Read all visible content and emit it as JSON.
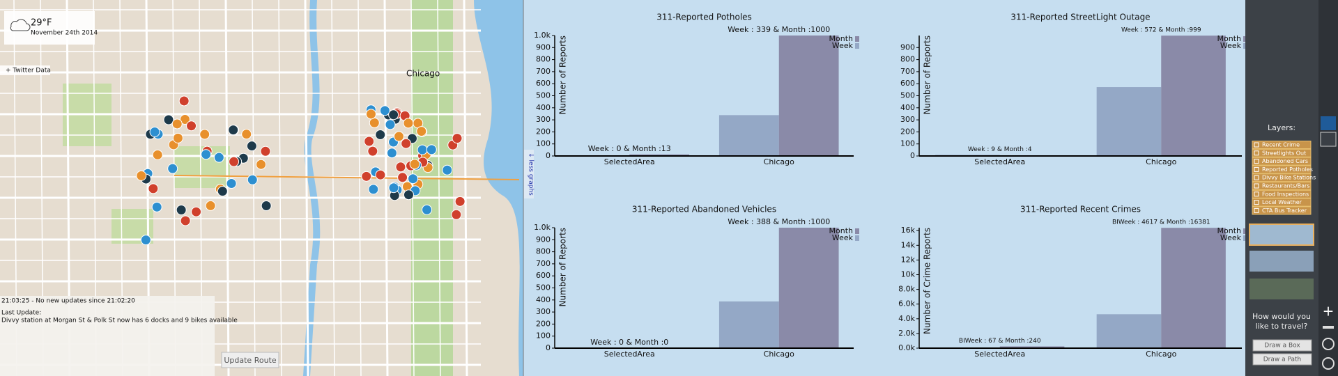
{
  "map": {
    "weather_temp": "29°F",
    "weather_date": "November 24th 2014",
    "twitter": "+ Twitter Data",
    "city_label": "Chicago",
    "status": [
      "21:03:25 - No new updates since 21:02:20",
      "Last Update:",
      "Divvy station at Morgan St & Polk St now has 6 docks and 9 bikes available"
    ],
    "update_route": "Update Route",
    "less_graphs": "↓ less graphs"
  },
  "sidebar": {
    "layers_title": "Layers:",
    "layers": [
      "Recent Crime",
      "Streetlights Out",
      "Abandoned Cars",
      "Reported Potholes",
      "Divvy Bike Stations",
      "Restaurants/Bars",
      "Food Inspections",
      "Local Weather",
      "CTA Bus Tracker"
    ],
    "travel_prompt": [
      "How would you",
      "like to travel?"
    ],
    "buttons": [
      "Draw a Box",
      "Draw a Path"
    ]
  },
  "chart_data": [
    {
      "type": "bar",
      "title": "311-Reported Potholes",
      "ylabel": "Number of Reports",
      "categories": [
        "SelectedArea",
        "Chicago"
      ],
      "series": [
        {
          "name": "Week",
          "color": "#94a8c6",
          "values": [
            0,
            339
          ]
        },
        {
          "name": "Month",
          "color": "#8a8aa8",
          "values": [
            13,
            1000
          ]
        }
      ],
      "annotations": [
        "Week : 0 & Month :13",
        "Week : 339 & Month :1000"
      ],
      "ylim": [
        0,
        1000
      ],
      "yticks": [
        0,
        100,
        200,
        300,
        400,
        500,
        600,
        700,
        800,
        900,
        {
          "value": 1000,
          "label": "1.0k"
        }
      ]
    },
    {
      "type": "bar",
      "title": "311-Reported StreetLight Outage",
      "ylabel": "Number of Reports",
      "categories": [
        "SelectedArea",
        "Chicago"
      ],
      "series": [
        {
          "name": "Week",
          "color": "#94a8c6",
          "values": [
            9,
            572
          ]
        },
        {
          "name": "Month",
          "color": "#8a8aa8",
          "values": [
            4,
            999
          ]
        }
      ],
      "annotations": [
        "Week : 9 & Month :4",
        "Week : 572 & Month :999"
      ],
      "ylim": [
        0,
        1000
      ],
      "yticks": [
        0,
        100,
        200,
        300,
        400,
        500,
        600,
        700,
        800,
        900
      ]
    },
    {
      "type": "bar",
      "title": "311-Reported Abandoned Vehicles",
      "ylabel": "Number of Reports",
      "categories": [
        "SelectedArea",
        "Chicago"
      ],
      "series": [
        {
          "name": "Week",
          "color": "#94a8c6",
          "values": [
            0,
            388
          ]
        },
        {
          "name": "Month",
          "color": "#8a8aa8",
          "values": [
            0,
            1000
          ]
        }
      ],
      "annotations": [
        "Week : 0 & Month :0",
        "Week : 388 & Month :1000"
      ],
      "ylim": [
        0,
        1000
      ],
      "yticks": [
        0,
        100,
        200,
        300,
        400,
        500,
        600,
        700,
        800,
        900,
        {
          "value": 1000,
          "label": "1.0k"
        }
      ]
    },
    {
      "type": "bar",
      "title": "311-Reported Recent Crimes",
      "ylabel": "Number of Crime Reports",
      "categories": [
        "SelectedArea",
        "Chicago"
      ],
      "series": [
        {
          "name": "Week",
          "color": "#94a8c6",
          "values": [
            67,
            4617
          ]
        },
        {
          "name": "Month",
          "color": "#8a8aa8",
          "values": [
            240,
            16381
          ]
        }
      ],
      "annotations": [
        "BIWeek : 67 & Month :240",
        "BIWeek : 4617 & Month :16381"
      ],
      "ylim": [
        0,
        16400
      ],
      "yticks": [
        {
          "value": 0,
          "label": "0.0k"
        },
        {
          "value": 2000,
          "label": "2.0k"
        },
        {
          "value": 4000,
          "label": "4.0k"
        },
        {
          "value": 6000,
          "label": "6.0k"
        },
        {
          "value": 8000,
          "label": "8.0k"
        },
        {
          "value": 10000,
          "label": "10k"
        },
        {
          "value": 12000,
          "label": "12k"
        },
        {
          "value": 14000,
          "label": "14k"
        },
        {
          "value": 16000,
          "label": "16k"
        }
      ]
    }
  ]
}
